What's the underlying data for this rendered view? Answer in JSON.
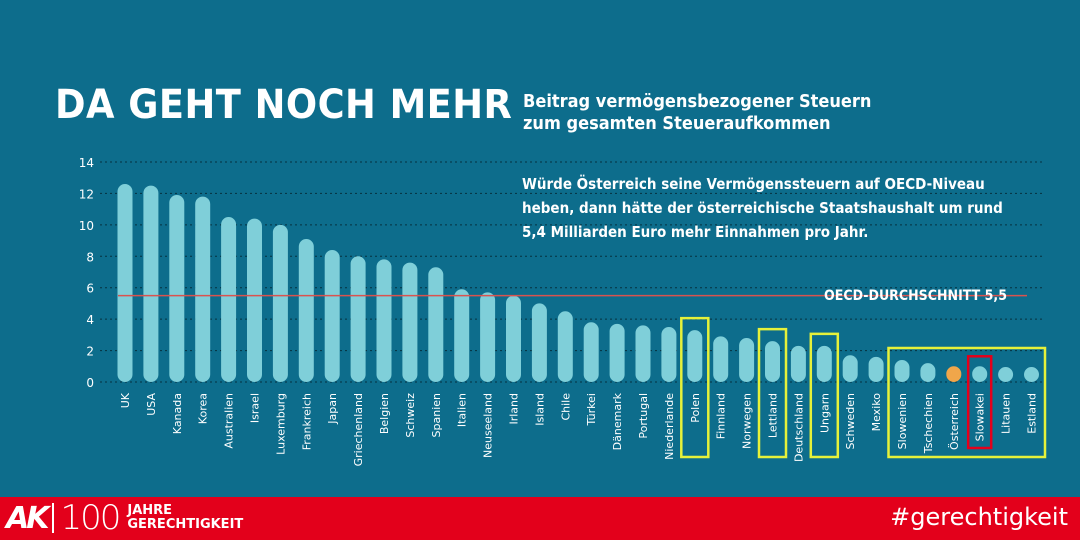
{
  "header": {
    "title": "DA GEHT NOCH MEHR",
    "subtitle_line1": "Beitrag vermögensbezogener Steuern",
    "subtitle_line2": "zum gesamten Steueraufkommen"
  },
  "note": {
    "line1": "Würde Österreich seine Vermögenssteuern auf OECD-Niveau",
    "line2": "heben, dann hätte der österreichische Staatshaushalt um rund",
    "line3": "5,4 Milliarden Euro mehr Einnahmen pro Jahr."
  },
  "average_label": "OECD-DURCHSCHNITT 5,5",
  "footer": {
    "logo_mark": "AK",
    "logo_number": "100",
    "logo_word1": "JAHRE",
    "logo_word2": "GERECHTIGKEIT",
    "hashtag": "#gerechtigkeit"
  },
  "colors": {
    "background": "#0d6d8c",
    "bar": "#7fcfd9",
    "bar_austria": "#f0a64a",
    "average_line": "#d9534f",
    "highlight_box": "#e6f13a",
    "highlight_box_slovakia": "#e3001b",
    "footer": "#e3001b",
    "text": "#ffffff"
  },
  "chart_data": {
    "type": "bar",
    "title": "DA GEHT NOCH MEHR",
    "subtitle": "Beitrag vermögensbezogener Steuern zum gesamten Steueraufkommen",
    "ylim": [
      0,
      14
    ],
    "yticks": [
      0,
      2,
      4,
      6,
      8,
      10,
      12,
      14
    ],
    "grid": true,
    "average": {
      "label": "OECD-DURCHSCHNITT 5,5",
      "value": 5.5
    },
    "categories": [
      "UK",
      "USA",
      "Kanada",
      "Korea",
      "Australien",
      "Israel",
      "Luxemburg",
      "Frankreich",
      "Japan",
      "Griechenland",
      "Belgien",
      "Schweiz",
      "Spanien",
      "Italien",
      "Neuseeland",
      "Irland",
      "Island",
      "Chile",
      "Türkei",
      "Dänemark",
      "Portugal",
      "Niederlande",
      "Polen",
      "Finnland",
      "Norwegen",
      "Lettland",
      "Deutschland",
      "Ungarn",
      "Schweden",
      "Mexiko",
      "Slowenien",
      "Tschechien",
      "Österreich",
      "Slowakei",
      "Litauen",
      "Estland"
    ],
    "values": [
      12.6,
      12.5,
      11.9,
      11.8,
      10.5,
      10.4,
      10.0,
      9.1,
      8.4,
      8.0,
      7.8,
      7.6,
      7.3,
      5.9,
      5.7,
      5.5,
      5.0,
      4.5,
      3.8,
      3.7,
      3.6,
      3.5,
      3.3,
      2.9,
      2.8,
      2.6,
      2.3,
      2.3,
      1.7,
      1.6,
      1.4,
      1.2,
      1.0,
      1.0,
      0.7,
      0.5
    ],
    "highlighted": [
      "Polen",
      "Lettland",
      "Ungarn",
      "Slowenien",
      "Tschechien",
      "Österreich",
      "Slowakei",
      "Litauen",
      "Estland"
    ],
    "emphasized": [
      "Österreich"
    ],
    "marked": [
      "Slowakei"
    ]
  }
}
